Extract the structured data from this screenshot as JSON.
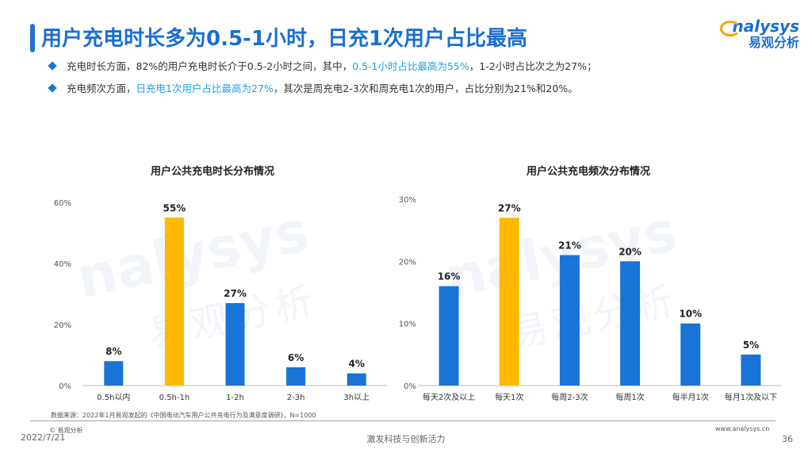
{
  "header": {
    "title": "用户充电时长多为0.5-1小时，日充1次用户占比最高",
    "logo_en": "nalysys",
    "logo_cn": "易观分析"
  },
  "bullets": [
    {
      "pre": "充电时长方面，82%的用户充电时长介于0.5-2小时之间，其中，",
      "hl": "0.5-1小时占比最高为55%",
      "post": "，1-2小时占比次之为27%；"
    },
    {
      "pre": "充电频次方面，",
      "hl": "日充电1次用户占比最高为27%",
      "post": "，其次是周充电2-3次和周充电1次的用户，占比分别为21%和20%。"
    }
  ],
  "colors": {
    "primary": "#1a73d6",
    "highlight": "#ffb800",
    "title": "#1a6fd0",
    "accent_text": "#1fa0e8"
  },
  "chart_data": [
    {
      "type": "bar",
      "title": "用户公共充电时长分布情况",
      "categories": [
        "0.5h以内",
        "0.5h-1h",
        "1-2h",
        "2-3h",
        "3h以上"
      ],
      "values": [
        8,
        55,
        27,
        6,
        4
      ],
      "labels": [
        "8%",
        "55%",
        "27%",
        "6%",
        "4%"
      ],
      "highlight_index": 1,
      "ylim": [
        0,
        60
      ],
      "yticks": [
        "0%",
        "20%",
        "40%",
        "60%"
      ]
    },
    {
      "type": "bar",
      "title": "用户公共充电频次分布情况",
      "categories": [
        "每天2次及以上",
        "每天1次",
        "每周2-3次",
        "每周1次",
        "每半月1次",
        "每月1次及以下"
      ],
      "values": [
        16,
        27,
        21,
        20,
        10,
        5
      ],
      "labels": [
        "16%",
        "27%",
        "21%",
        "20%",
        "10%",
        "5%"
      ],
      "highlight_index": 1,
      "ylim": [
        0,
        30
      ],
      "yticks": [
        "0%",
        "10%",
        "20%",
        "30%"
      ]
    }
  ],
  "footer": {
    "source": "数据来源：2022年1月易观发起的《中国电动汽车用户公共充电行为及满意度调研》，N=1000",
    "copyright": "© 易观分析",
    "date": "2022/7/21",
    "slogan": "激发科技与创新活力",
    "url": "www.analysys.cn",
    "page": "36"
  }
}
